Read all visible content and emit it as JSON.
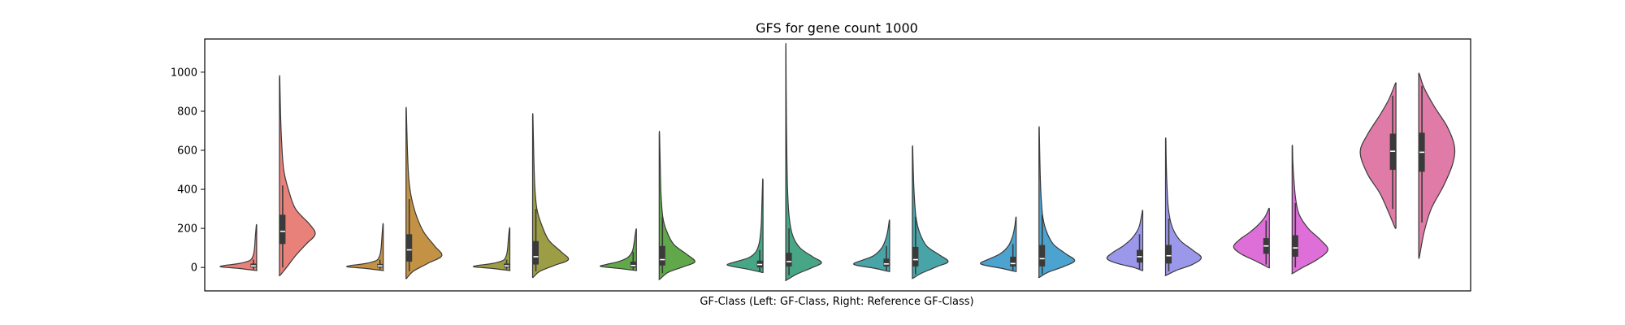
{
  "chart_data": {
    "type": "violin",
    "title": "GFS for gene count 1000",
    "xlabel": "GF-Class (Left: GF-Class, Right: Reference GF-Class)",
    "ylabel": "",
    "ylim": [
      -120,
      1170
    ],
    "yticks": [
      0,
      200,
      400,
      600,
      800,
      1000
    ],
    "grid": false,
    "legend": "none",
    "groups": [
      {
        "color": "#e8817a",
        "left": {
          "median": 8,
          "q1": 0,
          "q3": 20,
          "wlo": -10,
          "whi": 40,
          "min": -15,
          "max": 215,
          "profile": [
            [
              -15,
              0.04
            ],
            [
              -5,
              0.5
            ],
            [
              3,
              1.0
            ],
            [
              10,
              0.9
            ],
            [
              20,
              0.5
            ],
            [
              35,
              0.2
            ],
            [
              60,
              0.1
            ],
            [
              100,
              0.06
            ],
            [
              150,
              0.04
            ],
            [
              215,
              0.01
            ]
          ]
        },
        "right": {
          "median": 185,
          "q1": 120,
          "q3": 270,
          "wlo": 0,
          "whi": 420,
          "min": -40,
          "max": 970,
          "profile": [
            [
              -40,
              0.02
            ],
            [
              0,
              0.2
            ],
            [
              60,
              0.45
            ],
            [
              120,
              0.75
            ],
            [
              170,
              1.0
            ],
            [
              220,
              0.85
            ],
            [
              300,
              0.45
            ],
            [
              400,
              0.25
            ],
            [
              500,
              0.12
            ],
            [
              650,
              0.06
            ],
            [
              800,
              0.03
            ],
            [
              970,
              0.01
            ]
          ]
        }
      },
      {
        "color": "#c49245",
        "left": {
          "median": 8,
          "q1": 0,
          "q3": 18,
          "wlo": -10,
          "whi": 40,
          "min": -15,
          "max": 220,
          "profile": [
            [
              -15,
              0.04
            ],
            [
              -5,
              0.5
            ],
            [
              3,
              1.0
            ],
            [
              10,
              0.9
            ],
            [
              20,
              0.5
            ],
            [
              35,
              0.2
            ],
            [
              60,
              0.1
            ],
            [
              100,
              0.06
            ],
            [
              150,
              0.04
            ],
            [
              220,
              0.01
            ]
          ]
        },
        "right": {
          "median": 90,
          "q1": 30,
          "q3": 170,
          "wlo": -20,
          "whi": 350,
          "min": -55,
          "max": 805,
          "profile": [
            [
              -55,
              0.02
            ],
            [
              -20,
              0.2
            ],
            [
              20,
              0.6
            ],
            [
              60,
              1.0
            ],
            [
              110,
              0.8
            ],
            [
              180,
              0.5
            ],
            [
              260,
              0.3
            ],
            [
              350,
              0.16
            ],
            [
              450,
              0.08
            ],
            [
              600,
              0.04
            ],
            [
              805,
              0.01
            ]
          ]
        }
      },
      {
        "color": "#9c9d44",
        "left": {
          "median": 8,
          "q1": 0,
          "q3": 20,
          "wlo": -10,
          "whi": 40,
          "min": -15,
          "max": 200,
          "profile": [
            [
              -15,
              0.04
            ],
            [
              -5,
              0.5
            ],
            [
              3,
              1.0
            ],
            [
              10,
              0.9
            ],
            [
              20,
              0.5
            ],
            [
              35,
              0.2
            ],
            [
              60,
              0.1
            ],
            [
              100,
              0.06
            ],
            [
              150,
              0.04
            ],
            [
              200,
              0.01
            ]
          ]
        },
        "right": {
          "median": 55,
          "q1": 15,
          "q3": 135,
          "wlo": -20,
          "whi": 300,
          "min": -50,
          "max": 775,
          "profile": [
            [
              -50,
              0.02
            ],
            [
              -20,
              0.2
            ],
            [
              10,
              0.6
            ],
            [
              40,
              1.0
            ],
            [
              80,
              0.8
            ],
            [
              140,
              0.45
            ],
            [
              220,
              0.25
            ],
            [
              300,
              0.12
            ],
            [
              420,
              0.06
            ],
            [
              600,
              0.03
            ],
            [
              775,
              0.01
            ]
          ]
        }
      },
      {
        "color": "#60a84a",
        "left": {
          "median": 10,
          "q1": 0,
          "q3": 30,
          "wlo": -10,
          "whi": 80,
          "min": -15,
          "max": 195,
          "profile": [
            [
              -15,
              0.04
            ],
            [
              -5,
              0.5
            ],
            [
              5,
              1.0
            ],
            [
              15,
              0.85
            ],
            [
              30,
              0.5
            ],
            [
              50,
              0.25
            ],
            [
              80,
              0.12
            ],
            [
              120,
              0.07
            ],
            [
              160,
              0.04
            ],
            [
              195,
              0.01
            ]
          ]
        },
        "right": {
          "median": 40,
          "q1": 10,
          "q3": 110,
          "wlo": -30,
          "whi": 260,
          "min": -60,
          "max": 685,
          "profile": [
            [
              -60,
              0.02
            ],
            [
              -25,
              0.25
            ],
            [
              5,
              0.7
            ],
            [
              30,
              1.0
            ],
            [
              70,
              0.75
            ],
            [
              120,
              0.4
            ],
            [
              190,
              0.2
            ],
            [
              260,
              0.1
            ],
            [
              380,
              0.05
            ],
            [
              520,
              0.03
            ],
            [
              685,
              0.01
            ]
          ]
        }
      },
      {
        "color": "#47a686",
        "left": {
          "median": 15,
          "q1": 0,
          "q3": 35,
          "wlo": -20,
          "whi": 90,
          "min": -25,
          "max": 445,
          "profile": [
            [
              -25,
              0.04
            ],
            [
              -10,
              0.4
            ],
            [
              5,
              0.85
            ],
            [
              15,
              1.0
            ],
            [
              30,
              0.75
            ],
            [
              50,
              0.4
            ],
            [
              80,
              0.2
            ],
            [
              130,
              0.1
            ],
            [
              220,
              0.05
            ],
            [
              330,
              0.03
            ],
            [
              445,
              0.01
            ]
          ]
        },
        "right": {
          "median": 30,
          "q1": 5,
          "q3": 75,
          "wlo": -40,
          "whi": 200,
          "min": -65,
          "max": 1130,
          "profile": [
            [
              -65,
              0.02
            ],
            [
              -35,
              0.3
            ],
            [
              0,
              0.75
            ],
            [
              25,
              1.0
            ],
            [
              55,
              0.75
            ],
            [
              100,
              0.4
            ],
            [
              160,
              0.2
            ],
            [
              250,
              0.1
            ],
            [
              400,
              0.05
            ],
            [
              650,
              0.025
            ],
            [
              900,
              0.012
            ],
            [
              1130,
              0.005
            ]
          ]
        }
      },
      {
        "color": "#49a4a8",
        "left": {
          "median": 18,
          "q1": 5,
          "q3": 45,
          "wlo": -15,
          "whi": 110,
          "min": -20,
          "max": 240,
          "profile": [
            [
              -20,
              0.04
            ],
            [
              -5,
              0.4
            ],
            [
              10,
              0.9
            ],
            [
              20,
              1.0
            ],
            [
              35,
              0.8
            ],
            [
              60,
              0.45
            ],
            [
              100,
              0.22
            ],
            [
              150,
              0.1
            ],
            [
              200,
              0.04
            ],
            [
              240,
              0.01
            ]
          ]
        },
        "right": {
          "median": 40,
          "q1": 5,
          "q3": 105,
          "wlo": -35,
          "whi": 260,
          "min": -55,
          "max": 615,
          "profile": [
            [
              -55,
              0.02
            ],
            [
              -30,
              0.25
            ],
            [
              5,
              0.7
            ],
            [
              30,
              1.0
            ],
            [
              65,
              0.75
            ],
            [
              110,
              0.4
            ],
            [
              180,
              0.2
            ],
            [
              260,
              0.1
            ],
            [
              380,
              0.05
            ],
            [
              500,
              0.025
            ],
            [
              615,
              0.01
            ]
          ]
        }
      },
      {
        "color": "#4ca3d0",
        "left": {
          "median": 20,
          "q1": 5,
          "q3": 55,
          "wlo": -15,
          "whi": 120,
          "min": -20,
          "max": 255,
          "profile": [
            [
              -20,
              0.04
            ],
            [
              -5,
              0.4
            ],
            [
              10,
              0.85
            ],
            [
              22,
              1.0
            ],
            [
              40,
              0.8
            ],
            [
              70,
              0.45
            ],
            [
              110,
              0.22
            ],
            [
              160,
              0.1
            ],
            [
              210,
              0.04
            ],
            [
              255,
              0.01
            ]
          ]
        },
        "right": {
          "median": 45,
          "q1": 5,
          "q3": 115,
          "wlo": -35,
          "whi": 270,
          "min": -50,
          "max": 710,
          "profile": [
            [
              -50,
              0.02
            ],
            [
              -25,
              0.25
            ],
            [
              5,
              0.7
            ],
            [
              35,
              1.0
            ],
            [
              70,
              0.75
            ],
            [
              120,
              0.4
            ],
            [
              190,
              0.2
            ],
            [
              270,
              0.1
            ],
            [
              400,
              0.05
            ],
            [
              560,
              0.025
            ],
            [
              710,
              0.01
            ]
          ]
        }
      },
      {
        "color": "#9b97ea",
        "left": {
          "median": 55,
          "q1": 25,
          "q3": 90,
          "wlo": -10,
          "whi": 170,
          "min": -15,
          "max": 290,
          "profile": [
            [
              -15,
              0.03
            ],
            [
              0,
              0.25
            ],
            [
              20,
              0.7
            ],
            [
              45,
              1.0
            ],
            [
              75,
              0.85
            ],
            [
              110,
              0.55
            ],
            [
              150,
              0.3
            ],
            [
              200,
              0.12
            ],
            [
              250,
              0.05
            ],
            [
              290,
              0.01
            ]
          ]
        },
        "right": {
          "median": 60,
          "q1": 20,
          "q3": 115,
          "wlo": -20,
          "whi": 250,
          "min": -40,
          "max": 655,
          "profile": [
            [
              -40,
              0.02
            ],
            [
              -15,
              0.3
            ],
            [
              15,
              0.75
            ],
            [
              50,
              1.0
            ],
            [
              90,
              0.75
            ],
            [
              140,
              0.4
            ],
            [
              210,
              0.18
            ],
            [
              300,
              0.08
            ],
            [
              420,
              0.04
            ],
            [
              540,
              0.02
            ],
            [
              655,
              0.01
            ]
          ]
        }
      },
      {
        "color": "#de6fd9",
        "left": {
          "median": 110,
          "q1": 70,
          "q3": 150,
          "wlo": 15,
          "whi": 240,
          "min": 0,
          "max": 300,
          "profile": [
            [
              0,
              0.03
            ],
            [
              30,
              0.35
            ],
            [
              70,
              0.8
            ],
            [
              105,
              1.0
            ],
            [
              140,
              0.85
            ],
            [
              180,
              0.55
            ],
            [
              220,
              0.3
            ],
            [
              260,
              0.12
            ],
            [
              300,
              0.02
            ]
          ]
        },
        "right": {
          "median": 100,
          "q1": 55,
          "q3": 165,
          "wlo": 0,
          "whi": 330,
          "min": -30,
          "max": 620,
          "profile": [
            [
              -30,
              0.02
            ],
            [
              0,
              0.3
            ],
            [
              40,
              0.7
            ],
            [
              90,
              1.0
            ],
            [
              140,
              0.8
            ],
            [
              200,
              0.45
            ],
            [
              270,
              0.2
            ],
            [
              350,
              0.1
            ],
            [
              450,
              0.05
            ],
            [
              540,
              0.02
            ],
            [
              620,
              0.01
            ]
          ]
        }
      },
      {
        "color": "#e07aa6",
        "left": {
          "median": 595,
          "q1": 500,
          "q3": 685,
          "wlo": 300,
          "whi": 880,
          "min": 205,
          "max": 940,
          "profile": [
            [
              205,
              0.03
            ],
            [
              280,
              0.2
            ],
            [
              380,
              0.45
            ],
            [
              480,
              0.8
            ],
            [
              590,
              1.0
            ],
            [
              680,
              0.8
            ],
            [
              780,
              0.45
            ],
            [
              860,
              0.2
            ],
            [
              940,
              0.02
            ]
          ]
        },
        "right": {
          "median": 590,
          "q1": 490,
          "q3": 690,
          "wlo": 230,
          "whi": 930,
          "min": 55,
          "max": 990,
          "profile": [
            [
              55,
              0.02
            ],
            [
              180,
              0.15
            ],
            [
              300,
              0.35
            ],
            [
              420,
              0.7
            ],
            [
              530,
              0.95
            ],
            [
              620,
              1.0
            ],
            [
              720,
              0.8
            ],
            [
              820,
              0.45
            ],
            [
              920,
              0.15
            ],
            [
              990,
              0.02
            ]
          ]
        }
      }
    ]
  }
}
